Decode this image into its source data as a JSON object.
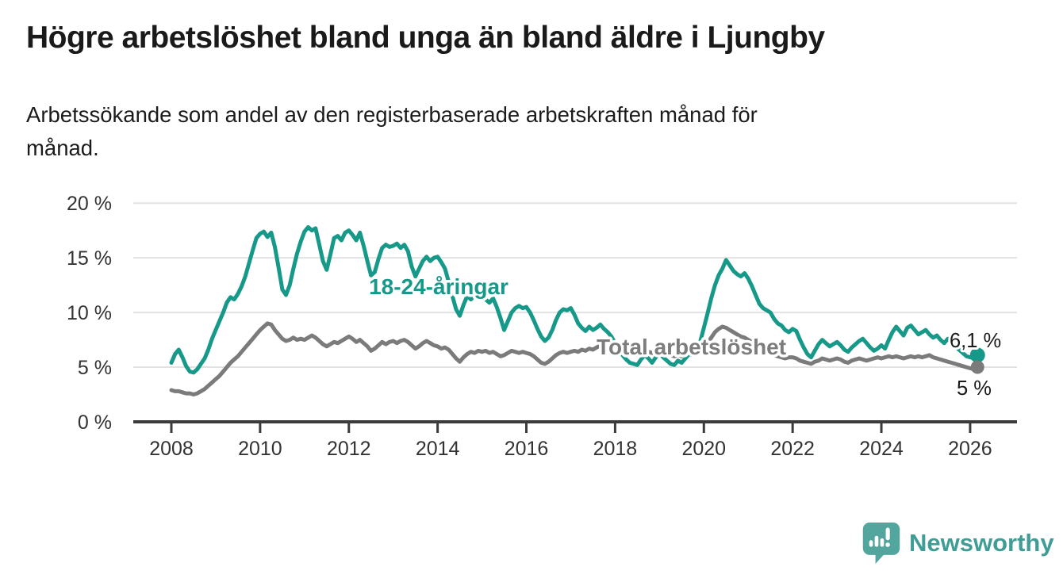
{
  "header": {
    "title": "Högre arbetslöshet bland unga än bland äldre i Ljungby",
    "subtitle_line1": "Arbetssökande som andel av den registerbaserade arbetskraften månad för",
    "subtitle_line2": "månad."
  },
  "logo": {
    "brand": "Newsworthy",
    "icon": "newsworthy-speech-bubble-bar-chart-icon",
    "icon_color": "#52a69d",
    "text_color": "#3f9d95"
  },
  "chart_data": {
    "type": "line",
    "x_interval": "monthly",
    "x_start_year": 2008,
    "x_end": "2026-03",
    "ylim": [
      0,
      20
    ],
    "grid": "horizontal",
    "gridline_color": "#e2e2e2",
    "axis_color": "#3b3b3b",
    "tick_label_color": "#333333",
    "end_label_color": "#1a1a1a",
    "yticks": [
      {
        "value": 0,
        "label": "0 %"
      },
      {
        "value": 5,
        "label": "5 %"
      },
      {
        "value": 10,
        "label": "10 %"
      },
      {
        "value": 15,
        "label": "15 %"
      },
      {
        "value": 20,
        "label": "20 %"
      }
    ],
    "xticks": [
      2008,
      2010,
      2012,
      2014,
      2016,
      2018,
      2020,
      2022,
      2024,
      2026
    ],
    "series": [
      {
        "name": "18-24-åringar",
        "color": "#17998a",
        "label_color": "#17998a",
        "end_label": "6,1 %",
        "end_value": 6.1,
        "values": [
          5.4,
          6.2,
          6.6,
          5.9,
          5.1,
          4.6,
          4.5,
          4.8,
          5.3,
          5.8,
          6.6,
          7.6,
          8.4,
          9.2,
          10.0,
          10.9,
          11.4,
          11.2,
          11.7,
          12.4,
          13.3,
          14.5,
          15.7,
          16.8,
          17.2,
          17.4,
          16.9,
          17.3,
          16.0,
          14.1,
          12.1,
          11.6,
          12.5,
          14.0,
          15.4,
          16.5,
          17.4,
          17.8,
          17.5,
          17.7,
          16.2,
          14.7,
          13.9,
          15.3,
          16.8,
          17.0,
          16.6,
          17.3,
          17.5,
          17.1,
          16.6,
          17.3,
          16.1,
          14.7,
          13.4,
          13.7,
          14.9,
          15.9,
          16.2,
          16.0,
          16.1,
          16.3,
          15.9,
          16.2,
          15.6,
          14.2,
          13.3,
          14.0,
          14.7,
          15.1,
          14.7,
          15.0,
          15.1,
          14.6,
          14.0,
          12.8,
          11.5,
          10.3,
          9.7,
          10.7,
          11.5,
          11.2,
          11.6,
          11.9,
          11.6,
          11.2,
          10.9,
          11.3,
          10.5,
          9.5,
          8.4,
          9.2,
          10.0,
          10.4,
          10.6,
          10.4,
          10.5,
          10.0,
          9.3,
          8.5,
          7.8,
          7.4,
          7.7,
          8.4,
          9.3,
          10.0,
          10.3,
          10.2,
          10.4,
          9.8,
          9.0,
          8.6,
          8.3,
          8.7,
          8.4,
          8.6,
          8.9,
          8.5,
          8.2,
          7.8,
          7.2,
          6.6,
          6.1,
          5.7,
          5.4,
          5.3,
          5.2,
          5.7,
          6.1,
          5.8,
          5.4,
          5.9,
          6.3,
          5.9,
          5.6,
          5.3,
          5.2,
          5.6,
          5.4,
          5.8,
          6.2,
          6.1,
          6.5,
          7.3,
          8.6,
          9.9,
          11.3,
          12.5,
          13.4,
          14.0,
          14.8,
          14.3,
          13.8,
          13.5,
          13.3,
          13.6,
          13.1,
          12.4,
          11.6,
          10.8,
          10.4,
          10.2,
          10.0,
          9.4,
          9.0,
          8.8,
          8.4,
          8.2,
          8.5,
          8.3,
          7.5,
          6.8,
          6.2,
          5.9,
          6.5,
          7.1,
          7.5,
          7.2,
          6.9,
          7.1,
          7.3,
          7.0,
          6.6,
          6.4,
          6.8,
          7.1,
          7.4,
          7.6,
          7.2,
          6.8,
          6.5,
          6.7,
          7.0,
          6.7,
          7.5,
          8.2,
          8.7,
          8.3,
          7.9,
          8.6,
          8.8,
          8.4,
          8.0,
          8.2,
          8.4,
          8.0,
          7.7,
          7.9,
          7.5,
          7.2,
          7.6,
          7.3,
          6.9,
          6.6,
          6.3,
          6.0,
          5.9,
          5.8,
          6.1
        ]
      },
      {
        "name": "Total arbetslöshet",
        "color": "#7b7b7b",
        "label_color": "#7d7d7d",
        "end_label": "5 %",
        "end_value": 5.0,
        "values": [
          2.9,
          2.8,
          2.8,
          2.7,
          2.6,
          2.6,
          2.5,
          2.6,
          2.8,
          3.0,
          3.3,
          3.6,
          3.9,
          4.2,
          4.6,
          5.0,
          5.4,
          5.7,
          6.0,
          6.4,
          6.8,
          7.2,
          7.6,
          8.0,
          8.4,
          8.7,
          9.0,
          8.9,
          8.4,
          8.0,
          7.6,
          7.4,
          7.5,
          7.7,
          7.5,
          7.6,
          7.5,
          7.7,
          7.9,
          7.7,
          7.4,
          7.1,
          6.9,
          7.1,
          7.3,
          7.2,
          7.4,
          7.6,
          7.8,
          7.6,
          7.3,
          7.5,
          7.2,
          6.9,
          6.5,
          6.7,
          7.0,
          7.3,
          7.1,
          7.3,
          7.4,
          7.2,
          7.4,
          7.5,
          7.3,
          7.0,
          6.7,
          6.9,
          7.2,
          7.4,
          7.2,
          7.0,
          6.9,
          6.7,
          6.8,
          6.6,
          6.2,
          5.8,
          5.5,
          5.9,
          6.2,
          6.4,
          6.3,
          6.5,
          6.4,
          6.5,
          6.3,
          6.4,
          6.2,
          6.0,
          6.1,
          6.3,
          6.5,
          6.4,
          6.3,
          6.4,
          6.3,
          6.2,
          6.0,
          5.7,
          5.4,
          5.3,
          5.5,
          5.8,
          6.1,
          6.3,
          6.4,
          6.3,
          6.4,
          6.5,
          6.4,
          6.6,
          6.5,
          6.7,
          6.6,
          6.8,
          7.0,
          7.1,
          6.9,
          7.0,
          7.1,
          6.9,
          6.7,
          6.6,
          6.4,
          6.3,
          6.2,
          6.3,
          6.5,
          6.4,
          6.3,
          6.4,
          6.5,
          6.4,
          6.2,
          6.1,
          6.0,
          6.1,
          6.0,
          6.2,
          6.3,
          6.2,
          6.4,
          6.6,
          6.9,
          7.2,
          7.7,
          8.2,
          8.5,
          8.7,
          8.6,
          8.4,
          8.2,
          8.0,
          7.8,
          7.7,
          7.5,
          7.3,
          7.1,
          6.9,
          6.6,
          6.4,
          6.2,
          6.1,
          6.0,
          5.9,
          5.8,
          5.9,
          5.9,
          5.8,
          5.6,
          5.5,
          5.4,
          5.3,
          5.5,
          5.6,
          5.8,
          5.7,
          5.6,
          5.7,
          5.8,
          5.7,
          5.5,
          5.4,
          5.6,
          5.7,
          5.8,
          5.7,
          5.6,
          5.7,
          5.8,
          5.9,
          5.8,
          5.9,
          6.0,
          5.9,
          6.0,
          5.9,
          5.8,
          5.9,
          6.0,
          5.9,
          6.0,
          5.9,
          6.0,
          6.1,
          5.9,
          5.8,
          5.7,
          5.6,
          5.5,
          5.4,
          5.3,
          5.2,
          5.1,
          5.0,
          4.9,
          4.8,
          5.0
        ]
      }
    ]
  }
}
